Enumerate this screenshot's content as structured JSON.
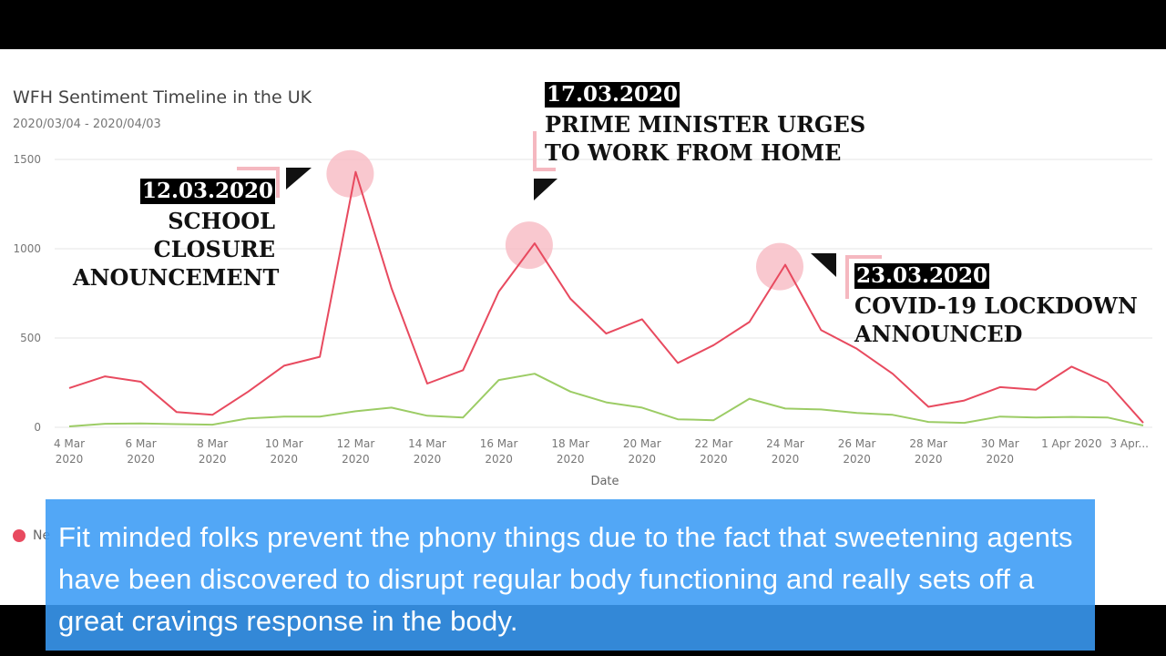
{
  "chart_header": {
    "title": "WFH Sentiment Timeline in the UK",
    "subtitle": "2020/03/04 - 2020/04/03"
  },
  "legend": {
    "label": "Ne"
  },
  "annotations": {
    "school": {
      "date": "12.03.2020",
      "lines": [
        "SCHOOL",
        "CLOSURE",
        "ANOUNCEMENT"
      ]
    },
    "pm": {
      "date": "17.03.2020",
      "lines": [
        "PRIME MINISTER URGES",
        "TO WORK FROM HOME"
      ]
    },
    "lockdown": {
      "date": "23.03.2020",
      "lines": [
        "COVID-19 LOCKDOWN",
        "ANNOUNCED"
      ]
    }
  },
  "caption": {
    "text": "Fit minded folks prevent the phony things due to the fact that sweetening agents have been discovered to disrupt regular body functioning and really sets off a great cravings response in the body."
  },
  "chart_data": {
    "type": "line",
    "title": "WFH Sentiment Timeline in the UK",
    "subtitle": "2020/03/04 - 2020/04/03",
    "xlabel": "Date",
    "ylabel": "",
    "ylim": [
      0,
      1500
    ],
    "yticks": [
      "0",
      "500",
      "1000",
      "1500"
    ],
    "grid": true,
    "x_tick_labels": [
      [
        "4 Mar",
        "2020"
      ],
      [
        "6 Mar",
        "2020"
      ],
      [
        "8 Mar",
        "2020"
      ],
      [
        "10 Mar",
        "2020"
      ],
      [
        "12 Mar",
        "2020"
      ],
      [
        "14 Mar",
        "2020"
      ],
      [
        "16 Mar",
        "2020"
      ],
      [
        "18 Mar",
        "2020"
      ],
      [
        "20 Mar",
        "2020"
      ],
      [
        "22 Mar",
        "2020"
      ],
      [
        "24 Mar",
        "2020"
      ],
      [
        "26 Mar",
        "2020"
      ],
      [
        "28 Mar",
        "2020"
      ],
      [
        "30 Mar",
        "2020"
      ],
      [
        "1 Apr 2020",
        ""
      ],
      [
        "3 Apr...",
        ""
      ]
    ],
    "x": [
      "2020-03-04",
      "2020-03-05",
      "2020-03-06",
      "2020-03-07",
      "2020-03-08",
      "2020-03-09",
      "2020-03-10",
      "2020-03-11",
      "2020-03-12",
      "2020-03-13",
      "2020-03-14",
      "2020-03-15",
      "2020-03-16",
      "2020-03-17",
      "2020-03-18",
      "2020-03-19",
      "2020-03-20",
      "2020-03-21",
      "2020-03-22",
      "2020-03-23",
      "2020-03-24",
      "2020-03-25",
      "2020-03-26",
      "2020-03-27",
      "2020-03-28",
      "2020-03-29",
      "2020-03-30",
      "2020-03-31",
      "2020-04-01",
      "2020-04-02",
      "2020-04-03"
    ],
    "series": [
      {
        "color": "#e84a5f",
        "values": [
          220,
          285,
          255,
          85,
          70,
          200,
          345,
          395,
          1430,
          780,
          245,
          320,
          760,
          1030,
          720,
          525,
          605,
          360,
          460,
          590,
          910,
          545,
          440,
          300,
          115,
          150,
          225,
          210,
          340,
          250,
          25
        ]
      },
      {
        "color": "#9ccc65",
        "values": [
          5,
          20,
          22,
          18,
          15,
          50,
          60,
          60,
          90,
          110,
          65,
          55,
          265,
          300,
          200,
          140,
          110,
          45,
          40,
          160,
          105,
          100,
          80,
          70,
          30,
          25,
          60,
          55,
          58,
          55,
          10
        ]
      }
    ],
    "highlights": [
      {
        "x": "2020-03-12",
        "y": 1430
      },
      {
        "x": "2020-03-17",
        "y": 1030
      },
      {
        "x": "2020-03-24",
        "y": 910
      }
    ]
  }
}
